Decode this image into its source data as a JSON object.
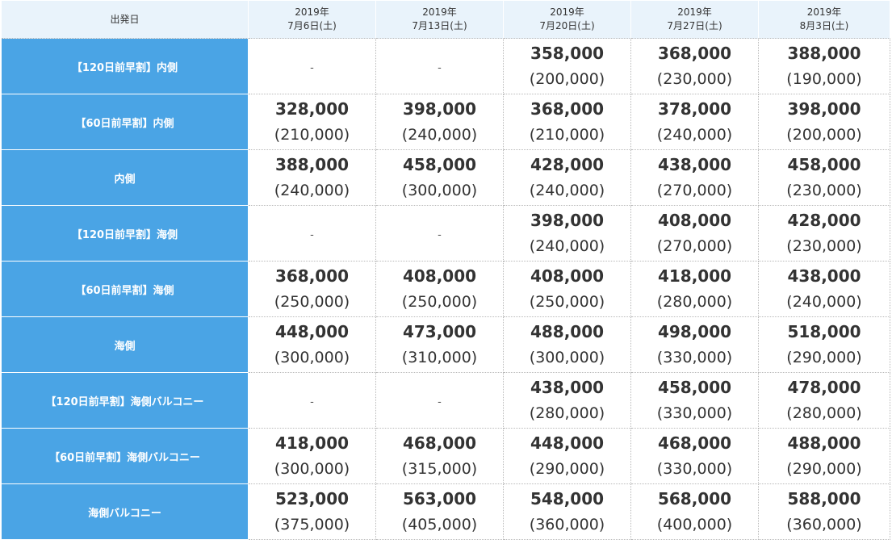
{
  "header": {
    "label": "出発日",
    "dates": [
      {
        "year": "2019年",
        "day": "7月6日(土)"
      },
      {
        "year": "2019年",
        "day": "7月13日(土)"
      },
      {
        "year": "2019年",
        "day": "7月20日(土)"
      },
      {
        "year": "2019年",
        "day": "7月27日(土)"
      },
      {
        "year": "2019年",
        "day": "8月3日(土)"
      }
    ]
  },
  "rows": [
    {
      "label": "【120日前早割】内側",
      "cells": [
        {
          "price": "",
          "sub": "",
          "dash": "-"
        },
        {
          "price": "",
          "sub": "",
          "dash": "-"
        },
        {
          "price": "358,000",
          "sub": "(200,000)"
        },
        {
          "price": "368,000",
          "sub": "(230,000)"
        },
        {
          "price": "388,000",
          "sub": "(190,000)"
        }
      ]
    },
    {
      "label": "【60日前早割】内側",
      "cells": [
        {
          "price": "328,000",
          "sub": "(210,000)"
        },
        {
          "price": "398,000",
          "sub": "(240,000)"
        },
        {
          "price": "368,000",
          "sub": "(210,000)"
        },
        {
          "price": "378,000",
          "sub": "(240,000)"
        },
        {
          "price": "398,000",
          "sub": "(200,000)"
        }
      ]
    },
    {
      "label": "内側",
      "cells": [
        {
          "price": "388,000",
          "sub": "(240,000)"
        },
        {
          "price": "458,000",
          "sub": "(300,000)"
        },
        {
          "price": "428,000",
          "sub": "(240,000)"
        },
        {
          "price": "438,000",
          "sub": "(270,000)"
        },
        {
          "price": "458,000",
          "sub": "(230,000)"
        }
      ]
    },
    {
      "label": "【120日前早割】海側",
      "cells": [
        {
          "price": "",
          "sub": "",
          "dash": "-"
        },
        {
          "price": "",
          "sub": "",
          "dash": "-"
        },
        {
          "price": "398,000",
          "sub": "(240,000)"
        },
        {
          "price": "408,000",
          "sub": "(270,000)"
        },
        {
          "price": "428,000",
          "sub": "(230,000)"
        }
      ]
    },
    {
      "label": "【60日前早割】海側",
      "cells": [
        {
          "price": "368,000",
          "sub": "(250,000)"
        },
        {
          "price": "408,000",
          "sub": "(250,000)"
        },
        {
          "price": "408,000",
          "sub": "(250,000)"
        },
        {
          "price": "418,000",
          "sub": "(280,000)"
        },
        {
          "price": "438,000",
          "sub": "(240,000)"
        }
      ]
    },
    {
      "label": "海側",
      "cells": [
        {
          "price": "448,000",
          "sub": "(300,000)"
        },
        {
          "price": "473,000",
          "sub": "(310,000)"
        },
        {
          "price": "488,000",
          "sub": "(300,000)"
        },
        {
          "price": "498,000",
          "sub": "(330,000)"
        },
        {
          "price": "518,000",
          "sub": "(290,000)"
        }
      ]
    },
    {
      "label": "【120日前早割】海側バルコニー",
      "cells": [
        {
          "price": "",
          "sub": "",
          "dash": "-"
        },
        {
          "price": "",
          "sub": "",
          "dash": "-"
        },
        {
          "price": "438,000",
          "sub": "(280,000)"
        },
        {
          "price": "458,000",
          "sub": "(330,000)"
        },
        {
          "price": "478,000",
          "sub": "(280,000)"
        }
      ]
    },
    {
      "label": "【60日前早割】海側バルコニー",
      "cells": [
        {
          "price": "418,000",
          "sub": "(300,000)"
        },
        {
          "price": "468,000",
          "sub": "(315,000)"
        },
        {
          "price": "448,000",
          "sub": "(290,000)"
        },
        {
          "price": "468,000",
          "sub": "(330,000)"
        },
        {
          "price": "488,000",
          "sub": "(290,000)"
        }
      ]
    },
    {
      "label": "海側バルコニー",
      "cells": [
        {
          "price": "523,000",
          "sub": "(375,000)"
        },
        {
          "price": "563,000",
          "sub": "(405,000)"
        },
        {
          "price": "548,000",
          "sub": "(360,000)"
        },
        {
          "price": "568,000",
          "sub": "(400,000)"
        },
        {
          "price": "588,000",
          "sub": "(360,000)"
        }
      ]
    }
  ],
  "colors": {
    "row_label_bg": "#4aa4e5",
    "header_bg": "#e9f3fb",
    "text": "#333333"
  }
}
